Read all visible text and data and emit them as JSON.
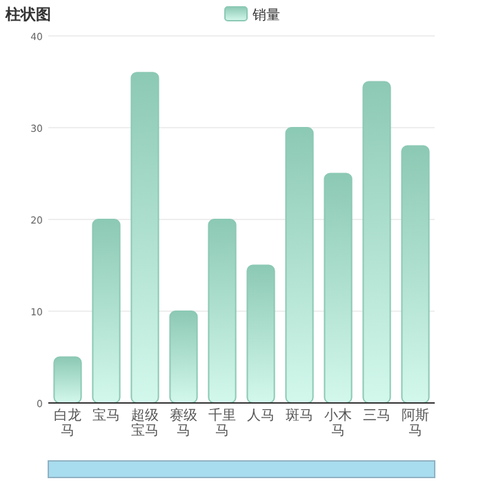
{
  "chart_data": {
    "type": "bar",
    "title": "柱状图",
    "categories": [
      "白龙马",
      "宝马",
      "超级宝马",
      "赛级马",
      "千里马",
      "人马",
      "斑马",
      "小木马",
      "三马",
      "阿斯马"
    ],
    "series": [
      {
        "name": "销量",
        "color": "#8cc9b4",
        "values": [
          5,
          20,
          36,
          10,
          20,
          15,
          30,
          25,
          35,
          28
        ]
      }
    ],
    "ylim": [
      0,
      40
    ],
    "yticks": [
      0,
      10,
      20,
      30,
      40
    ],
    "grid": "y",
    "legend": "top"
  }
}
